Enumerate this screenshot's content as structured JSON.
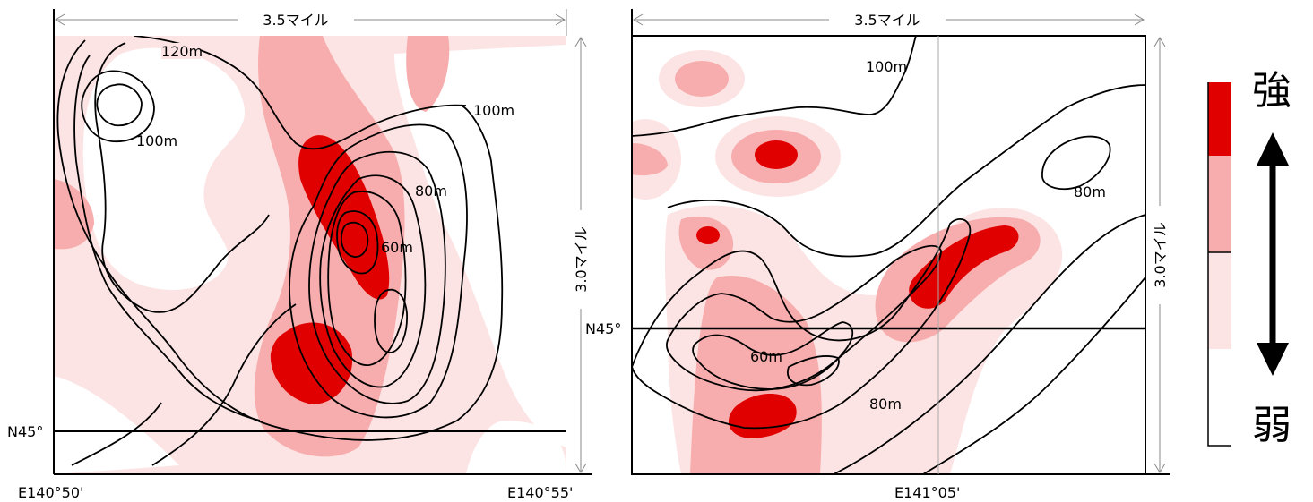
{
  "colors": {
    "strong": "#e00000",
    "mid": "#f7adad",
    "light": "#fde4e4",
    "weak": "#ffffff"
  },
  "left_map": {
    "width_label": "3.5マイル",
    "height_label": "3.0マイル",
    "lat_label": "N45°",
    "lon_left": "E140°50'",
    "lon_right": "E140°55'",
    "contour_labels": [
      "120m",
      "100m",
      "100m",
      "80m",
      "60m"
    ]
  },
  "right_map": {
    "width_label": "3.5マイル",
    "height_label": "3.0マイル",
    "lat_label": "N45°",
    "lon_center": "E141°05'",
    "contour_labels": [
      "100m",
      "80m",
      "60m",
      "80m"
    ]
  },
  "legend": {
    "strong_label": "強",
    "weak_label": "弱",
    "arrow_icon": "double-arrow-vertical-icon"
  }
}
